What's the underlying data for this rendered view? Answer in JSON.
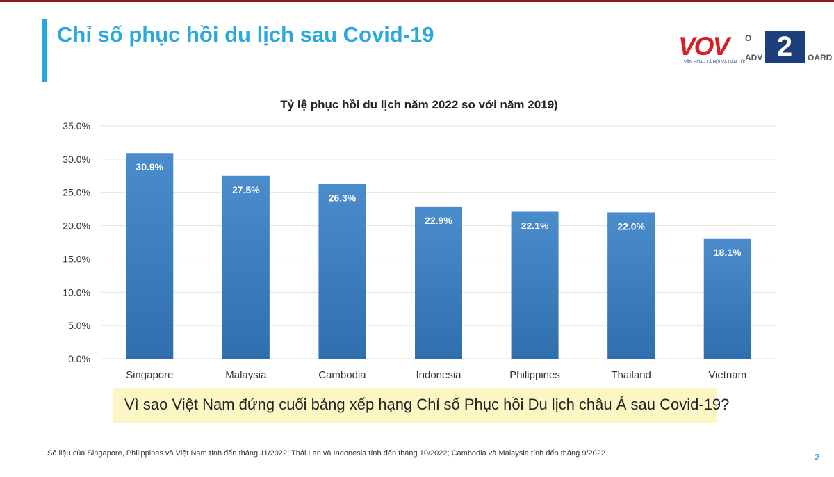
{
  "slide": {
    "title": "Chỉ số phục hồi du lịch sau Covid-19",
    "question": "Vì sao Việt Nam đứng cuối bảng xếp hạng Chỉ số Phục hồi Du lịch châu Á sau Covid-19?",
    "footnote": "Số liệu của Singapore, Philippines và Việt Nam tính đến tháng 11/2022; Thái Lan và Indonesia tính đến tháng 10/2022; Cambodia và Malaysia tính đến tháng 9/2022",
    "page_number": "2",
    "accent_color": "#29a8e0"
  },
  "logo": {
    "brand": "VOV",
    "channel": "2",
    "tagline": "VĂN HÓA - XÃ HỘI VÀ DÂN TỘC",
    "partial_text_1": "O",
    "partial_text_2": "ADV",
    "partial_text_3": "OARD"
  },
  "chart_data": {
    "type": "bar",
    "title": "Tỷ lệ phục hồi du lịch năm 2022 so với năm 2019)",
    "categories": [
      "Singapore",
      "Malaysia",
      "Cambodia",
      "Indonesia",
      "Philippines",
      "Thailand",
      "Vietnam"
    ],
    "values": [
      30.9,
      27.5,
      26.3,
      22.9,
      22.1,
      22.0,
      18.1
    ],
    "value_labels": [
      "30.9%",
      "27.5%",
      "26.3%",
      "22.9%",
      "22.1%",
      "22.0%",
      "18.1%"
    ],
    "y_ticks": [
      "0.0%",
      "5.0%",
      "10.0%",
      "15.0%",
      "20.0%",
      "25.0%",
      "30.0%",
      "35.0%"
    ],
    "y_tick_values": [
      0,
      5,
      10,
      15,
      20,
      25,
      30,
      35
    ],
    "ylim": [
      0,
      35
    ],
    "xlabel": "",
    "ylabel": "",
    "grid": true,
    "legend": "none",
    "bar_color_top": "#4a8ccc",
    "bar_color_bottom": "#2f6fae"
  }
}
